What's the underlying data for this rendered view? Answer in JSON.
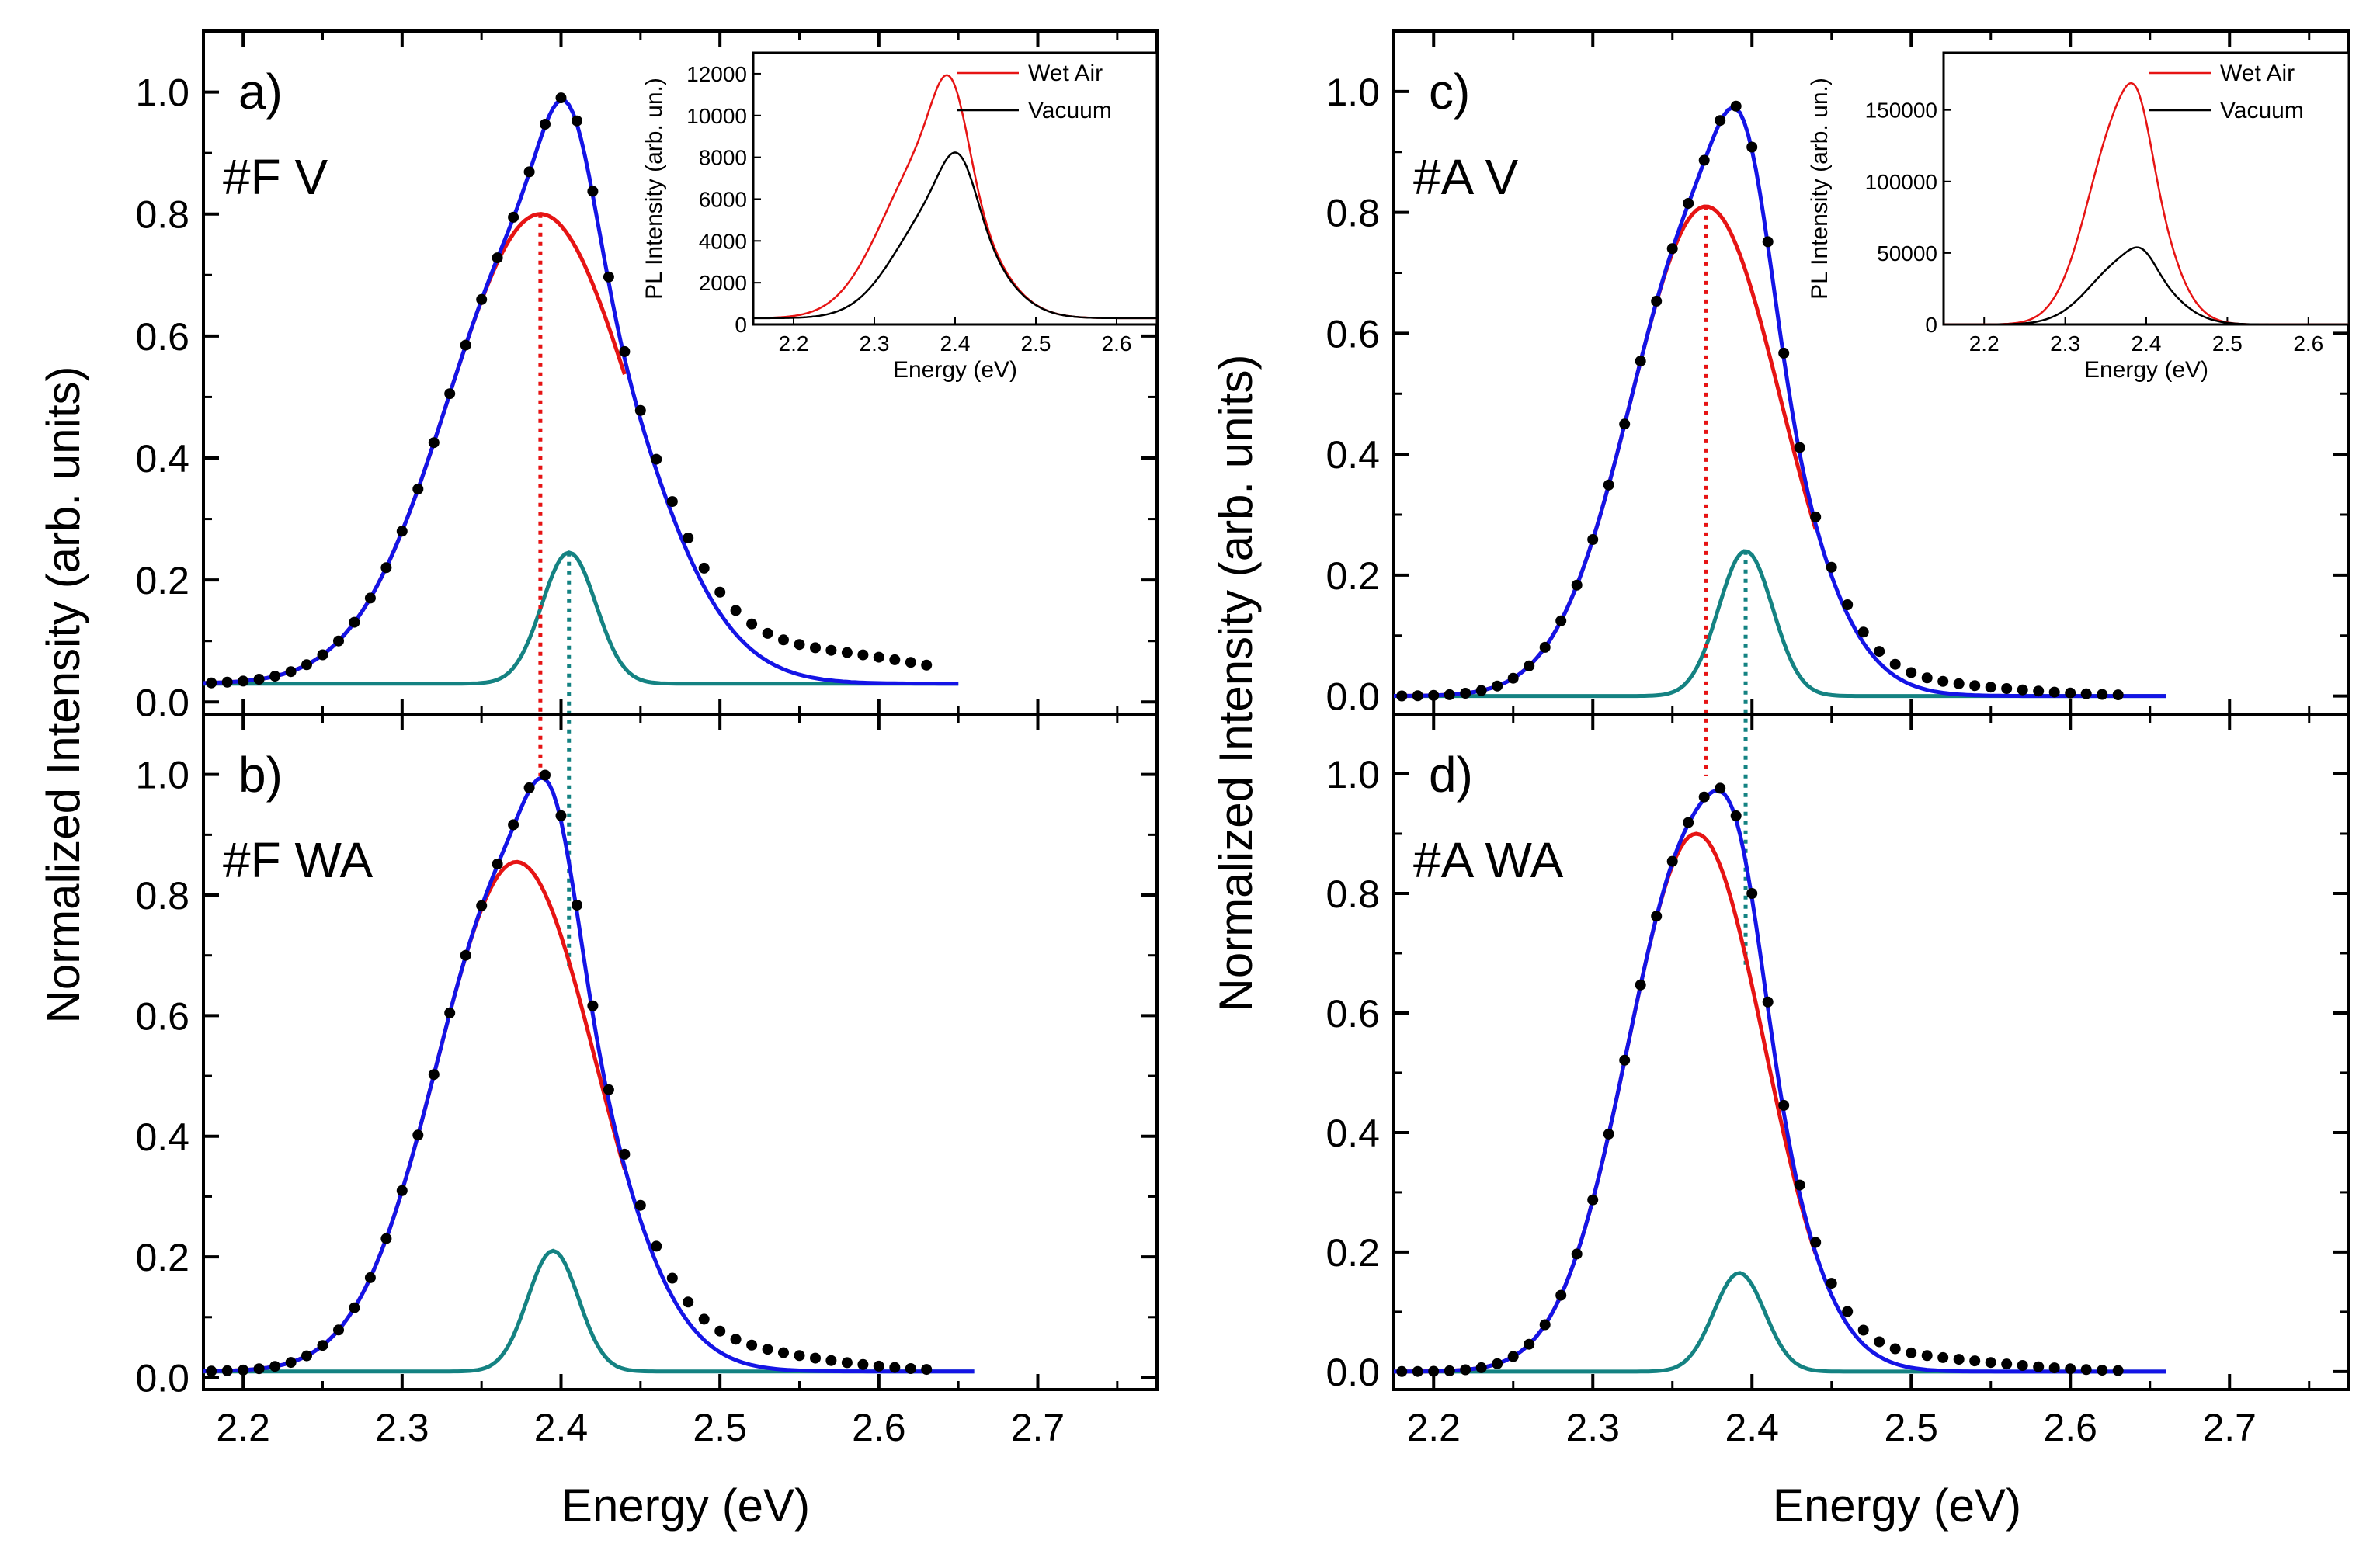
{
  "figure": {
    "ylabel_left": "Normalized  Intensity (arb. units)",
    "ylabel_right": "Normalized  Intensity (arb. units)",
    "xlabel_left": "Energy (eV)",
    "xlabel_right": "Energy (eV)"
  },
  "colors": {
    "experimental": "#000000",
    "total_fit": "#1414e6",
    "component_1": "#e61414",
    "component_2": "#148282",
    "inset_wet_air": "#e61414",
    "inset_vacuum": "#000000"
  },
  "chart_data": [
    {
      "id": "a",
      "type": "line",
      "panel_label": "a)",
      "sample_label": "#F V",
      "xlim": [
        2.175,
        2.775
      ],
      "ylim": [
        -0.02,
        1.1
      ],
      "xticks": [
        2.2,
        2.3,
        2.4,
        2.5,
        2.6,
        2.7
      ],
      "xtick_labels": [
        "2.2",
        "2.3",
        "2.4",
        "2.5",
        "2.6",
        "2.7"
      ],
      "yticks": [
        0.0,
        0.2,
        0.4,
        0.6,
        0.8,
        1.0
      ],
      "ytick_labels": [
        "0.0",
        "0.2",
        "0.4",
        "0.6",
        "0.8",
        "1.0"
      ],
      "show_xtick_labels": false,
      "fit_range": [
        2.175,
        2.65
      ],
      "dots_range": [
        2.18,
        2.63
      ],
      "dot_step": 0.01,
      "baseline": 0.03,
      "g1": {
        "amp": 0.77,
        "center": 2.387,
        "sigma": 0.058
      },
      "g2": {
        "amp": 0.215,
        "center": 2.405,
        "sigma": 0.017
      },
      "tail": {
        "amp": 0.05,
        "center": 2.56,
        "sigma": 0.07
      },
      "vlines": [
        {
          "x": 2.387,
          "series": "component_1"
        },
        {
          "x": 2.405,
          "series": "component_2"
        }
      ],
      "series": [
        {
          "name": "experimental",
          "style": "dots"
        },
        {
          "name": "total_fit",
          "style": "line"
        },
        {
          "name": "component_1",
          "style": "line"
        },
        {
          "name": "component_2",
          "style": "line"
        }
      ]
    },
    {
      "id": "b",
      "type": "line",
      "panel_label": "b)",
      "sample_label": "#F WA",
      "xlim": [
        2.175,
        2.775
      ],
      "ylim": [
        -0.02,
        1.1
      ],
      "xticks": [
        2.2,
        2.3,
        2.4,
        2.5,
        2.6,
        2.7
      ],
      "xtick_labels": [
        "2.2",
        "2.3",
        "2.4",
        "2.5",
        "2.6",
        "2.7"
      ],
      "yticks": [
        0.0,
        0.2,
        0.4,
        0.6,
        0.8,
        1.0
      ],
      "ytick_labels": [
        "0.0",
        "0.2",
        "0.4",
        "0.6",
        "0.8",
        "1.0"
      ],
      "show_xtick_labels": true,
      "fit_range": [
        2.175,
        2.66
      ],
      "dots_range": [
        2.18,
        2.63
      ],
      "dot_step": 0.01,
      "baseline": 0.01,
      "g1": {
        "amp": 0.845,
        "center": 2.372,
        "sigma": 0.05
      },
      "g2": {
        "amp": 0.2,
        "center": 2.395,
        "sigma": 0.016
      },
      "tail": {
        "amp": 0.035,
        "center": 2.5,
        "sigma": 0.06
      },
      "vlines": [],
      "series": [
        {
          "name": "experimental",
          "style": "dots"
        },
        {
          "name": "total_fit",
          "style": "line"
        },
        {
          "name": "component_1",
          "style": "line"
        },
        {
          "name": "component_2",
          "style": "line"
        }
      ]
    },
    {
      "id": "c",
      "type": "line",
      "panel_label": "c)",
      "sample_label": "#A V",
      "xlim": [
        2.175,
        2.775
      ],
      "ylim": [
        -0.03,
        1.1
      ],
      "xticks": [
        2.2,
        2.3,
        2.4,
        2.5,
        2.6,
        2.7
      ],
      "xtick_labels": [
        "2.2",
        "2.3",
        "2.4",
        "2.5",
        "2.6",
        "2.7"
      ],
      "yticks": [
        0.0,
        0.2,
        0.4,
        0.6,
        0.8,
        1.0
      ],
      "ytick_labels": [
        "0.0",
        "0.2",
        "0.4",
        "0.6",
        "0.8",
        "1.0"
      ],
      "show_xtick_labels": false,
      "fit_range": [
        2.175,
        2.66
      ],
      "dots_range": [
        2.18,
        2.63
      ],
      "dot_step": 0.01,
      "baseline": 0.0,
      "g1": {
        "amp": 0.81,
        "center": 2.371,
        "sigma": 0.047
      },
      "g2": {
        "amp": 0.24,
        "center": 2.396,
        "sigma": 0.017
      },
      "tail": {
        "amp": 0.02,
        "center": 2.5,
        "sigma": 0.06
      },
      "vlines": [
        {
          "x": 2.371,
          "series": "component_1"
        },
        {
          "x": 2.396,
          "series": "component_2"
        }
      ],
      "series": [
        {
          "name": "experimental",
          "style": "dots"
        },
        {
          "name": "total_fit",
          "style": "line"
        },
        {
          "name": "component_1",
          "style": "line"
        },
        {
          "name": "component_2",
          "style": "line"
        }
      ]
    },
    {
      "id": "d",
      "type": "line",
      "panel_label": "d)",
      "sample_label": "#A WA",
      "xlim": [
        2.175,
        2.775
      ],
      "ylim": [
        -0.03,
        1.1
      ],
      "xticks": [
        2.2,
        2.3,
        2.4,
        2.5,
        2.6,
        2.7
      ],
      "xtick_labels": [
        "2.2",
        "2.3",
        "2.4",
        "2.5",
        "2.6",
        "2.7"
      ],
      "yticks": [
        0.0,
        0.2,
        0.4,
        0.6,
        0.8,
        1.0
      ],
      "ytick_labels": [
        "0.0",
        "0.2",
        "0.4",
        "0.6",
        "0.8",
        "1.0"
      ],
      "show_xtick_labels": true,
      "fit_range": [
        2.175,
        2.66
      ],
      "dots_range": [
        2.18,
        2.63
      ],
      "dot_step": 0.01,
      "baseline": 0.0,
      "g1": {
        "amp": 0.9,
        "center": 2.365,
        "sigma": 0.043
      },
      "g2": {
        "amp": 0.165,
        "center": 2.392,
        "sigma": 0.016
      },
      "tail": {
        "amp": 0.025,
        "center": 2.49,
        "sigma": 0.06
      },
      "vlines": [],
      "series": [
        {
          "name": "experimental",
          "style": "dots"
        },
        {
          "name": "total_fit",
          "style": "line"
        },
        {
          "name": "component_1",
          "style": "line"
        },
        {
          "name": "component_2",
          "style": "line"
        }
      ]
    },
    {
      "id": "inset-a",
      "type": "line",
      "xlabel": "Energy (eV)",
      "ylabel": "PL Intensity (arb. un.)",
      "xlim": [
        2.15,
        2.65
      ],
      "ylim": [
        0,
        13000
      ],
      "xticks": [
        2.2,
        2.3,
        2.4,
        2.5,
        2.6
      ],
      "xtick_labels": [
        "2.2",
        "2.3",
        "2.4",
        "2.5",
        "2.6"
      ],
      "yticks": [
        0,
        2000,
        4000,
        6000,
        8000,
        10000,
        12000
      ],
      "ytick_labels": [
        "0",
        "2000",
        "4000",
        "6000",
        "8000",
        "10000",
        "12000"
      ],
      "legend": [
        "Wet Air",
        "Vacuum"
      ],
      "legend_position": "top-right",
      "series": [
        {
          "name": "Wet Air",
          "baseline": 300,
          "peaks": [
            {
              "amp": 8000,
              "center": 2.37,
              "sigma": 0.058
            },
            {
              "amp": 4200,
              "center": 2.395,
              "sigma": 0.022
            }
          ]
        },
        {
          "name": "Vacuum",
          "baseline": 300,
          "peaks": [
            {
              "amp": 5600,
              "center": 2.385,
              "sigma": 0.055
            },
            {
              "amp": 2600,
              "center": 2.405,
              "sigma": 0.022
            }
          ]
        }
      ]
    },
    {
      "id": "inset-c",
      "type": "line",
      "xlabel": "Energy (eV)",
      "ylabel": "PL Intensity (arb. un.)",
      "xlim": [
        2.15,
        2.65
      ],
      "ylim": [
        0,
        190000
      ],
      "xticks": [
        2.2,
        2.3,
        2.4,
        2.5,
        2.6
      ],
      "xtick_labels": [
        "2.2",
        "2.3",
        "2.4",
        "2.5",
        "2.6"
      ],
      "yticks": [
        0,
        50000,
        100000,
        150000
      ],
      "ytick_labels": [
        "0",
        "50000",
        "100000",
        "150000"
      ],
      "legend": [
        "Wet Air",
        "Vacuum"
      ],
      "legend_position": "top-right",
      "series": [
        {
          "name": "Wet Air",
          "baseline": 0,
          "peaks": [
            {
              "amp": 150000,
              "center": 2.372,
              "sigma": 0.042
            },
            {
              "amp": 26000,
              "center": 2.39,
              "sigma": 0.016
            }
          ]
        },
        {
          "name": "Vacuum",
          "baseline": 0,
          "peaks": [
            {
              "amp": 46000,
              "center": 2.378,
              "sigma": 0.045
            },
            {
              "amp": 10000,
              "center": 2.395,
              "sigma": 0.016
            }
          ]
        }
      ]
    }
  ]
}
